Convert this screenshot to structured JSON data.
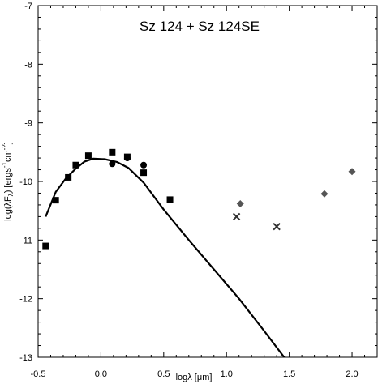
{
  "chart_data": {
    "type": "scatter",
    "title": "Sz 124 + Sz 124SE",
    "xlabel": "logλ [μm]",
    "ylabel_parts": {
      "prefix": "log(λF",
      "sub": "λ",
      "mid": ") [ergs",
      "sup1": "-1",
      "mid2": "cm",
      "sup2": "-2",
      "suffix": "]"
    },
    "xlim": [
      -0.5,
      2.2
    ],
    "ylim": [
      -13,
      -7
    ],
    "x_ticks": [
      {
        "value": -0.5,
        "label": "-0.5"
      },
      {
        "value": 0.0,
        "label": "0.0"
      },
      {
        "value": 0.5,
        "label": "0.5"
      },
      {
        "value": 1.0,
        "label": "1.0"
      },
      {
        "value": 1.5,
        "label": "1.5"
      },
      {
        "value": 2.0,
        "label": "2.0"
      }
    ],
    "y_ticks": [
      {
        "value": -13,
        "label": "-13"
      },
      {
        "value": -12,
        "label": "-12"
      },
      {
        "value": -11,
        "label": "-11"
      },
      {
        "value": -10,
        "label": "-10"
      },
      {
        "value": -9,
        "label": "-9"
      },
      {
        "value": -8,
        "label": "-8"
      },
      {
        "value": -7,
        "label": "-7"
      }
    ],
    "grid": false,
    "series": [
      {
        "marker": "square",
        "color": "#000000",
        "points": [
          {
            "x": -0.44,
            "y": -11.1
          },
          {
            "x": -0.36,
            "y": -10.32
          },
          {
            "x": -0.26,
            "y": -9.93
          },
          {
            "x": -0.2,
            "y": -9.72
          },
          {
            "x": -0.1,
            "y": -9.56
          },
          {
            "x": 0.09,
            "y": -9.5
          },
          {
            "x": 0.21,
            "y": -9.58
          },
          {
            "x": 0.34,
            "y": -9.85
          },
          {
            "x": 0.55,
            "y": -10.31
          }
        ]
      },
      {
        "marker": "circle",
        "color": "#000000",
        "points": [
          {
            "x": 0.09,
            "y": -9.7
          },
          {
            "x": 0.21,
            "y": -9.6
          },
          {
            "x": 0.34,
            "y": -9.72
          }
        ]
      },
      {
        "marker": "diamond",
        "color": "#555555",
        "points": [
          {
            "x": 1.11,
            "y": -10.38
          },
          {
            "x": 1.78,
            "y": -10.21
          },
          {
            "x": 2.0,
            "y": -9.83
          }
        ]
      },
      {
        "marker": "cross",
        "color": "#333333",
        "points": [
          {
            "x": 1.08,
            "y": -10.6
          },
          {
            "x": 1.4,
            "y": -10.77
          }
        ]
      },
      {
        "marker": "line",
        "color": "#000000",
        "points": [
          {
            "x": -0.44,
            "y": -10.6
          },
          {
            "x": -0.36,
            "y": -10.18
          },
          {
            "x": -0.28,
            "y": -9.95
          },
          {
            "x": -0.2,
            "y": -9.78
          },
          {
            "x": -0.13,
            "y": -9.66
          },
          {
            "x": -0.06,
            "y": -9.61
          },
          {
            "x": 0.03,
            "y": -9.62
          },
          {
            "x": 0.13,
            "y": -9.67
          },
          {
            "x": 0.22,
            "y": -9.77
          },
          {
            "x": 0.34,
            "y": -10.02
          },
          {
            "x": 0.5,
            "y": -10.48
          },
          {
            "x": 0.7,
            "y": -11.0
          },
          {
            "x": 0.9,
            "y": -11.5
          },
          {
            "x": 1.1,
            "y": -12.0
          },
          {
            "x": 1.3,
            "y": -12.55
          },
          {
            "x": 1.46,
            "y": -13.0
          }
        ]
      }
    ]
  }
}
